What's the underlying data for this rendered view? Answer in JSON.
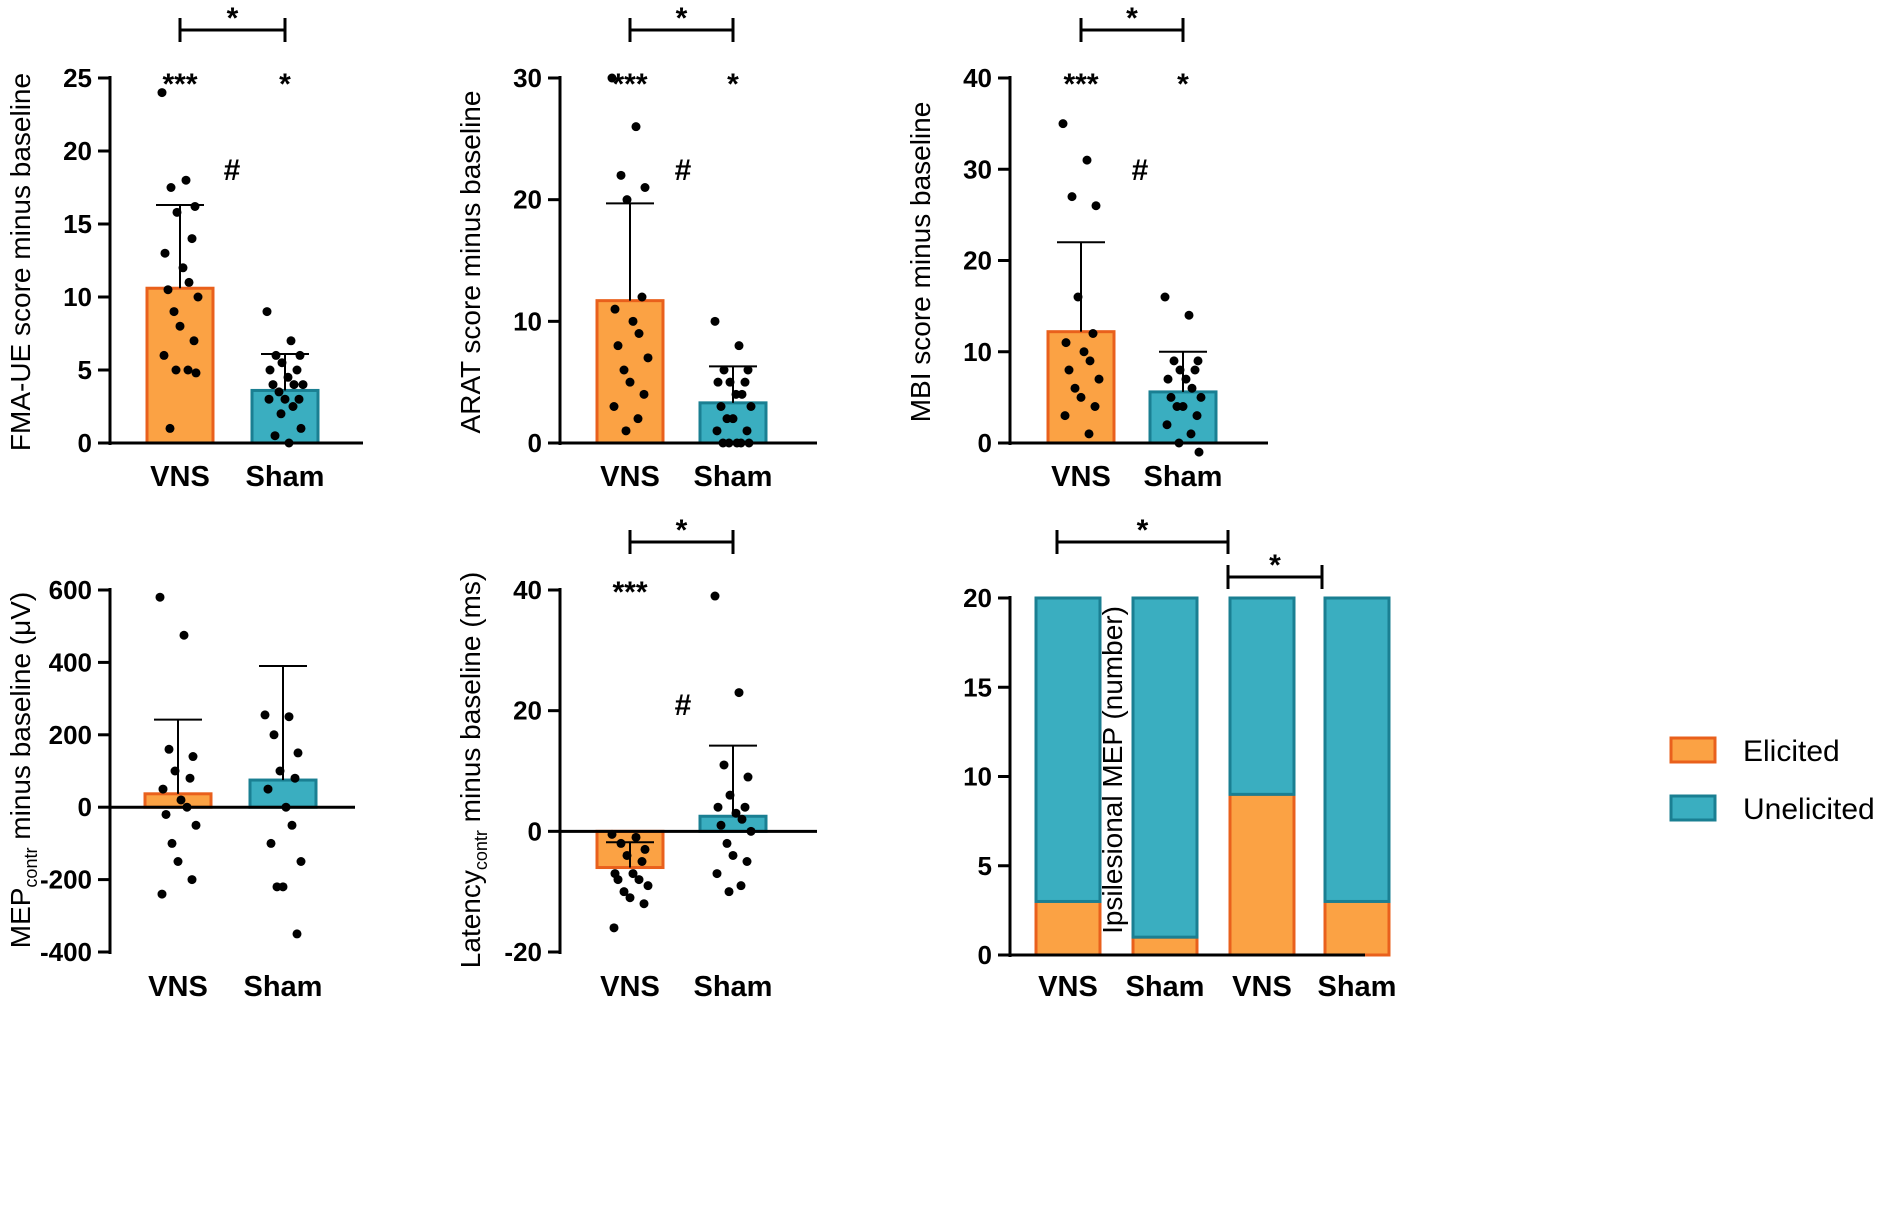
{
  "colors": {
    "vns": "#fba244",
    "vns_edge": "#e9601c",
    "sham": "#3aaec0",
    "sham_edge": "#1a7f92",
    "ink": "#000000"
  },
  "chart_data": [
    {
      "id": "fma",
      "type": "bar",
      "title": "",
      "ylabel": "FMA-UE score minus baseline",
      "ylabel_sub": "",
      "ylabel_rest": "",
      "categories": [
        "VNS",
        "Sham"
      ],
      "values": [
        10.6,
        3.6
      ],
      "sd_upper": [
        16.3,
        6.1
      ],
      "ylim": [
        0,
        25
      ],
      "yticks": [
        0,
        5,
        10,
        15,
        20,
        25
      ],
      "ytick_labels": [
        "0",
        "5",
        "10",
        "15",
        "20",
        "25"
      ],
      "points": [
        [
          24,
          18,
          17.5,
          16.2,
          15.8,
          14,
          13,
          12,
          11,
          10.5,
          10,
          9,
          8,
          7,
          6,
          5,
          5,
          4.8,
          1
        ],
        [
          9,
          7,
          6,
          6,
          5.5,
          5,
          5,
          4.5,
          4,
          4,
          4,
          3.5,
          3,
          3,
          3,
          2.5,
          2,
          1,
          0.5,
          0
        ]
      ],
      "markers_above": [
        "***",
        "*"
      ],
      "hash_mark": "#",
      "bracket_label": "*"
    },
    {
      "id": "arat",
      "type": "bar",
      "title": "",
      "ylabel": "ARAT score minus baseline",
      "ylabel_sub": "",
      "ylabel_rest": "",
      "categories": [
        "VNS",
        "Sham"
      ],
      "values": [
        11.7,
        3.3
      ],
      "sd_upper": [
        19.7,
        6.3
      ],
      "ylim": [
        0,
        30
      ],
      "yticks": [
        0,
        10,
        20,
        30
      ],
      "ytick_labels": [
        "0",
        "10",
        "20",
        "30"
      ],
      "points": [
        [
          30,
          26,
          22,
          21,
          20,
          12,
          11,
          10,
          9,
          8,
          7,
          6,
          5,
          4,
          3,
          2,
          1
        ],
        [
          10,
          8,
          6,
          6,
          5,
          5,
          5,
          4,
          4,
          3,
          3,
          2,
          2,
          1,
          1,
          0,
          0,
          0,
          0,
          0
        ]
      ],
      "markers_above": [
        "***",
        "*"
      ],
      "hash_mark": "#",
      "bracket_label": "*"
    },
    {
      "id": "mbi",
      "type": "bar",
      "title": "",
      "ylabel": "MBI score minus baseline",
      "ylabel_sub": "",
      "ylabel_rest": "",
      "categories": [
        "VNS",
        "Sham"
      ],
      "values": [
        12.2,
        5.6
      ],
      "sd_upper": [
        22.0,
        10.0
      ],
      "ylim": [
        0,
        40
      ],
      "yticks": [
        0,
        10,
        20,
        30,
        40
      ],
      "ytick_labels": [
        "0",
        "10",
        "20",
        "30",
        "40"
      ],
      "points": [
        [
          35,
          31,
          27,
          26,
          16,
          12,
          11,
          10,
          9,
          8,
          7,
          6,
          5,
          4,
          3,
          1
        ],
        [
          16,
          14,
          9,
          9,
          8,
          8,
          7,
          7,
          6,
          5,
          5,
          4,
          4,
          3,
          2,
          1,
          0,
          -1
        ]
      ],
      "markers_above": [
        "***",
        "*"
      ],
      "hash_mark": "#",
      "bracket_label": "*"
    },
    {
      "id": "mep",
      "type": "bar",
      "title": "",
      "ylabel": "MEP",
      "ylabel_sub": "contr",
      "ylabel_rest": " minus baseline (μV)",
      "categories": [
        "VNS",
        "Sham"
      ],
      "values": [
        37,
        75
      ],
      "sd_upper": [
        242,
        390
      ],
      "ylim": [
        -400,
        600
      ],
      "yticks": [
        -400,
        -200,
        0,
        200,
        400,
        600
      ],
      "ytick_labels": [
        "-400",
        "-200",
        "0",
        "200",
        "400",
        "600"
      ],
      "points": [
        [
          580,
          475,
          160,
          140,
          100,
          80,
          50,
          20,
          0,
          -20,
          -50,
          -100,
          -150,
          -200,
          -240
        ],
        [
          255,
          250,
          200,
          150,
          100,
          80,
          50,
          0,
          -50,
          -100,
          -150,
          -220,
          -220,
          -350
        ]
      ],
      "markers_above": [
        "",
        ""
      ],
      "hash_mark": "",
      "bracket_label": ""
    },
    {
      "id": "latency",
      "type": "bar",
      "title": "",
      "ylabel": "Latency",
      "ylabel_sub": "contr",
      "ylabel_rest": " minus baseline (ms)",
      "categories": [
        "VNS",
        "Sham"
      ],
      "values": [
        -6,
        2.5
      ],
      "sd_upper": [
        -1.8,
        14.2
      ],
      "ylim": [
        -20,
        40
      ],
      "yticks": [
        -20,
        0,
        20,
        40
      ],
      "ytick_labels": [
        "-20",
        "0",
        "20",
        "40"
      ],
      "points": [
        [
          -0.5,
          -1,
          -2,
          -3,
          -4,
          -5,
          -7,
          -7,
          -8,
          -8,
          -9,
          -10,
          -11,
          -12,
          -16
        ],
        [
          39,
          23,
          11,
          9,
          6,
          4,
          4,
          3,
          2,
          1,
          0,
          -2,
          -4,
          -5,
          -7,
          -9,
          -10
        ]
      ],
      "markers_above": [
        "***",
        ""
      ],
      "hash_mark": "#",
      "bracket_label": "*"
    },
    {
      "id": "ipsi",
      "type": "stacked-bar",
      "title": "",
      "ylabel": "Ipsilesional MEP (number)",
      "categories": [
        "VNS",
        "Sham",
        "VNS",
        "Sham"
      ],
      "series": [
        {
          "name": "Elicited",
          "values": [
            3,
            1,
            9,
            3
          ]
        },
        {
          "name": "Unelicited",
          "values": [
            17,
            19,
            11,
            17
          ]
        }
      ],
      "ylim": [
        0,
        20
      ],
      "yticks": [
        0,
        5,
        10,
        15,
        20
      ],
      "ytick_labels": [
        "0",
        "5",
        "10",
        "15",
        "20"
      ],
      "legend": [
        "Elicited",
        "Unelicited"
      ],
      "legend_position": "right",
      "bracket_labels": [
        "*",
        "*"
      ]
    }
  ]
}
